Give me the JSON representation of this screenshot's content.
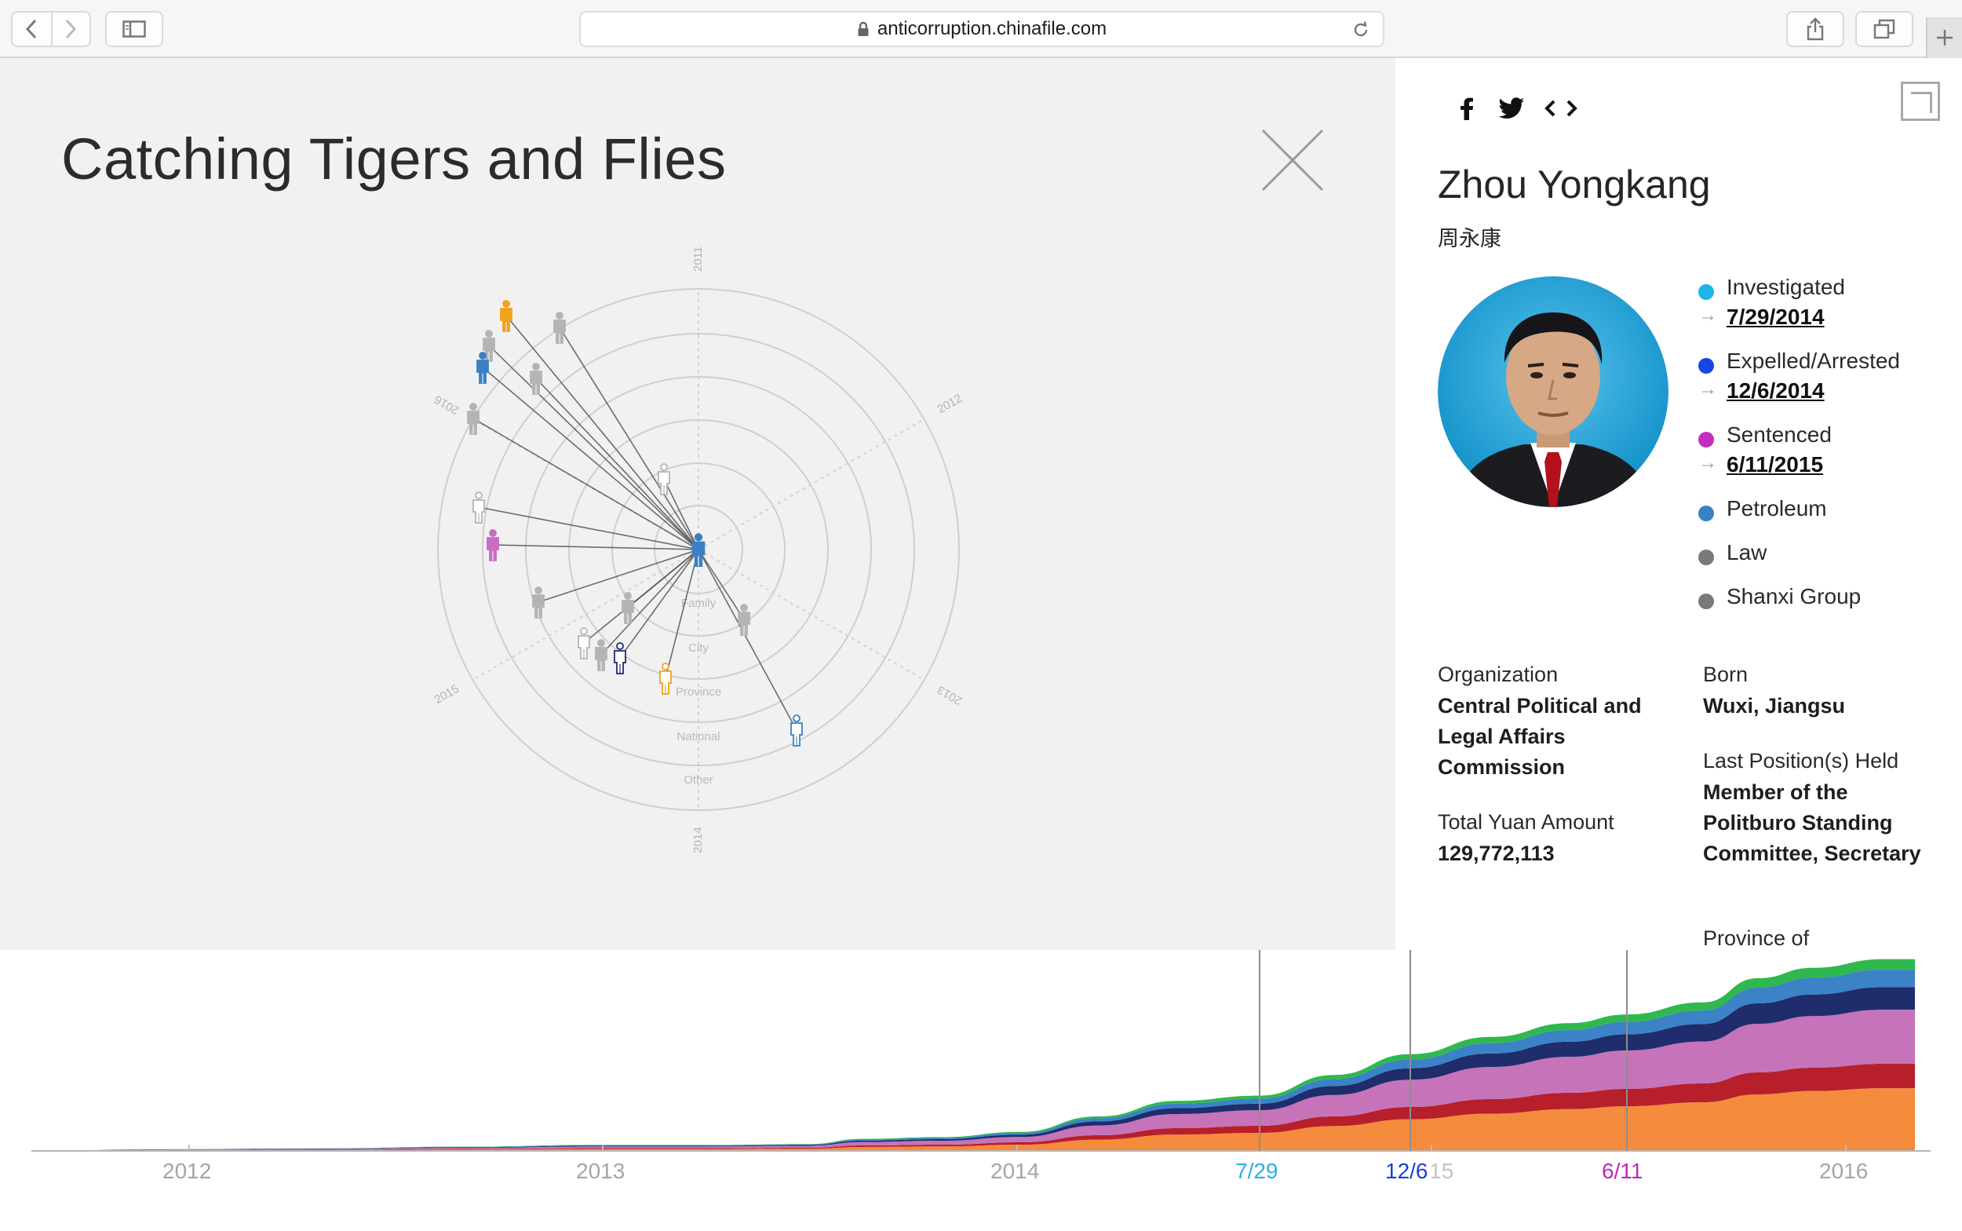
{
  "browser": {
    "url": "anticorruption.chinafile.com",
    "icons": [
      "back-icon",
      "forward-icon",
      "sidebar-icon",
      "lock-icon",
      "reload-icon",
      "share-icon",
      "tabs-icon",
      "plus-icon"
    ]
  },
  "app": {
    "title": "Catching Tigers and Flies"
  },
  "radial": {
    "year_labels": [
      "2011",
      "2012",
      "2013",
      "2014",
      "2015",
      "2016"
    ],
    "ring_labels": [
      "Family",
      "City",
      "Province",
      "National",
      "Other"
    ],
    "figure_colors": {
      "gray": "#b4b4b4",
      "orange": "#f2a11e",
      "blue": "#3a80c4",
      "navy": "#1d2a6b",
      "purple": "#c86cc4"
    }
  },
  "detail": {
    "share_icons": [
      "facebook-icon",
      "twitter-icon",
      "embed-icon"
    ],
    "name": "Zhou Yongkang",
    "chinese_name": "周永康",
    "statuses": [
      {
        "label": "Investigated",
        "date": "7/29/2014",
        "color": "#1fb3ea"
      },
      {
        "label": "Expelled/Arrested",
        "date": "12/6/2014",
        "color": "#1646e6"
      },
      {
        "label": "Sentenced",
        "date": "6/11/2015",
        "color": "#c32ec1"
      }
    ],
    "tags": [
      {
        "label": "Petroleum",
        "color": "#3a80c4"
      },
      {
        "label": "Law",
        "color": "#7a7a7a"
      },
      {
        "label": "Shanxi Group",
        "color": "#7a7a7a"
      }
    ],
    "organization_label": "Organization",
    "organization_value": "Central Political and Legal Affairs Commission",
    "born_label": "Born",
    "born_value": "Wuxi, Jiangsu",
    "position_label": "Last Position(s) Held",
    "position_value": "Member of the Politburo Standing Committee, Secretary",
    "yuan_label": "Total Yuan Amount",
    "yuan_value": "129,772,113",
    "province_label": "Province of"
  },
  "timeline": {
    "year_labels": [
      "2012",
      "2013",
      "2014",
      "2015",
      "2016"
    ],
    "markers": [
      {
        "label": "7/29",
        "color": "#29aee6"
      },
      {
        "label": "12/6",
        "color": "#1a3fd6"
      },
      {
        "label": "6/11",
        "color": "#c126b6"
      }
    ],
    "layer_colors": [
      "#f58b3c",
      "#b7202a",
      "#c673ba",
      "#1f2d6c",
      "#3b82c6",
      "#2fb84e"
    ]
  }
}
